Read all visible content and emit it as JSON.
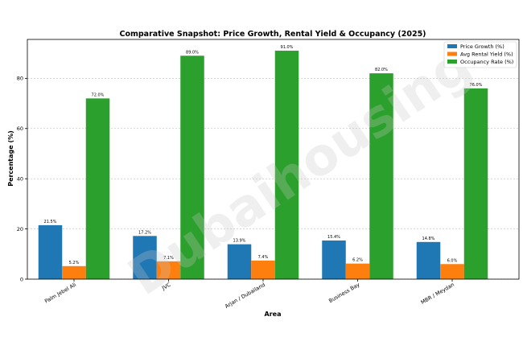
{
  "chart_data": {
    "type": "bar",
    "title": "Comparative Snapshot: Price Growth, Rental Yield & Occupancy (2025)",
    "xlabel": "Area",
    "ylabel": "Percentage (%)",
    "categories": [
      "Palm Jebel Ali",
      "JVC",
      "Arjan / Dubailand",
      "Business Bay",
      "MBR / Meydan"
    ],
    "series": [
      {
        "name": "Price Growth (%)",
        "color": "#1f77b4",
        "values": [
          21.5,
          17.2,
          13.9,
          15.4,
          14.8
        ],
        "labels": [
          "21.5%",
          "17.2%",
          "13.9%",
          "15.4%",
          "14.8%"
        ]
      },
      {
        "name": "Avg Rental Yield (%)",
        "color": "#ff7f0e",
        "values": [
          5.2,
          7.1,
          7.4,
          6.2,
          6.0
        ],
        "labels": [
          "5.2%",
          "7.1%",
          "7.4%",
          "6.2%",
          "6.0%"
        ]
      },
      {
        "name": "Occupancy Rate (%)",
        "color": "#2ca02c",
        "values": [
          72.0,
          89.0,
          91.0,
          82.0,
          76.0
        ],
        "labels": [
          "72.0%",
          "89.0%",
          "91.0%",
          "82.0%",
          "76.0%"
        ]
      }
    ],
    "ylim": [
      0,
      95.5
    ],
    "yticks": [
      0,
      20,
      40,
      60,
      80
    ],
    "ytick_labels": [
      "0",
      "20",
      "40",
      "60",
      "80"
    ],
    "grid": "horizontal dashed",
    "legend_position": "top-right",
    "watermark": "Dubaihousing"
  }
}
